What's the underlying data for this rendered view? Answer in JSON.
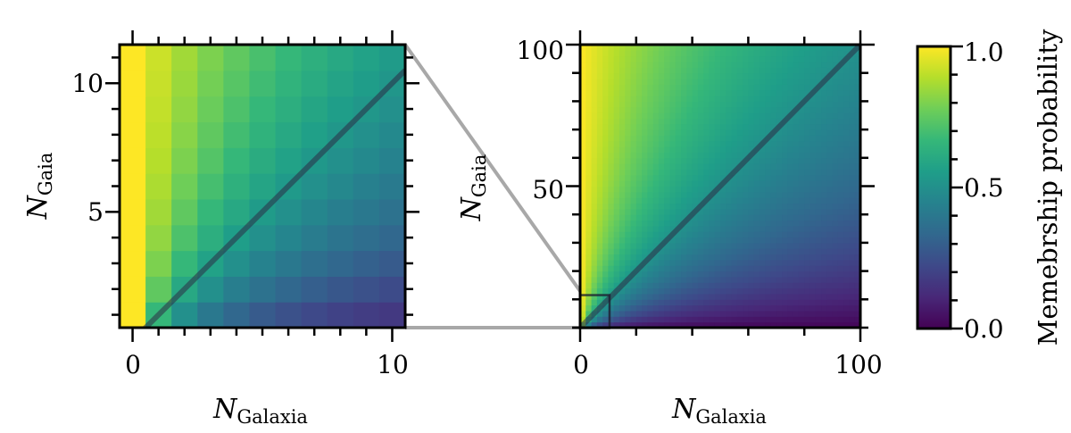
{
  "chart_data": [
    {
      "type": "heatmap",
      "xlabel": {
        "symbol": "N",
        "subscript": "Galaxia"
      },
      "ylabel": {
        "symbol": "N",
        "subscript": "Gaia"
      },
      "xlim": [
        -0.5,
        10.5
      ],
      "ylim": [
        0.5,
        11.5
      ],
      "x_ticks": [
        "0",
        "10"
      ],
      "y_ticks": [
        "5",
        "10"
      ],
      "x_tick_values": [
        0,
        10
      ],
      "y_tick_values": [
        5,
        10
      ],
      "grid_x": [
        0,
        1,
        2,
        3,
        4,
        5,
        6,
        7,
        8,
        9,
        10
      ],
      "grid_y": [
        1,
        2,
        3,
        4,
        5,
        6,
        7,
        8,
        9,
        10,
        11
      ],
      "diagonal_line": true,
      "value_model": "p = (N_Gaia + 1) / (N_Gaia + N_Galaxia + 1)"
    },
    {
      "type": "heatmap",
      "xlabel": {
        "symbol": "N",
        "subscript": "Galaxia"
      },
      "ylabel": {
        "symbol": "N",
        "subscript": "Gaia"
      },
      "xlim": [
        0,
        100
      ],
      "ylim": [
        0,
        100
      ],
      "x_ticks": [
        "0",
        "100"
      ],
      "y_ticks": [
        "50",
        "100"
      ],
      "x_tick_values": [
        0,
        100
      ],
      "y_tick_values": [
        50,
        100
      ],
      "diagonal_line": true,
      "zoom_box": {
        "x": [
          -0.5,
          10.5
        ],
        "y": [
          0.5,
          11.5
        ]
      },
      "value_model": "p = (N_Gaia + 1) / (N_Gaia + N_Galaxia + 1)"
    }
  ],
  "colorbar": {
    "label": "Memebrship probability",
    "ticks": [
      "0.0",
      "0.5",
      "1.0"
    ],
    "tick_values": [
      0.0,
      0.5,
      1.0
    ],
    "range": [
      0,
      1
    ],
    "colormap": "viridis"
  },
  "colors": {
    "diagonal": "#2b2b45",
    "connector": "#a8a8a8",
    "viridis": [
      "#440154",
      "#482878",
      "#3e4989",
      "#31688e",
      "#26828e",
      "#1f9e89",
      "#35b779",
      "#6ece58",
      "#b5de2b",
      "#fde725"
    ]
  }
}
